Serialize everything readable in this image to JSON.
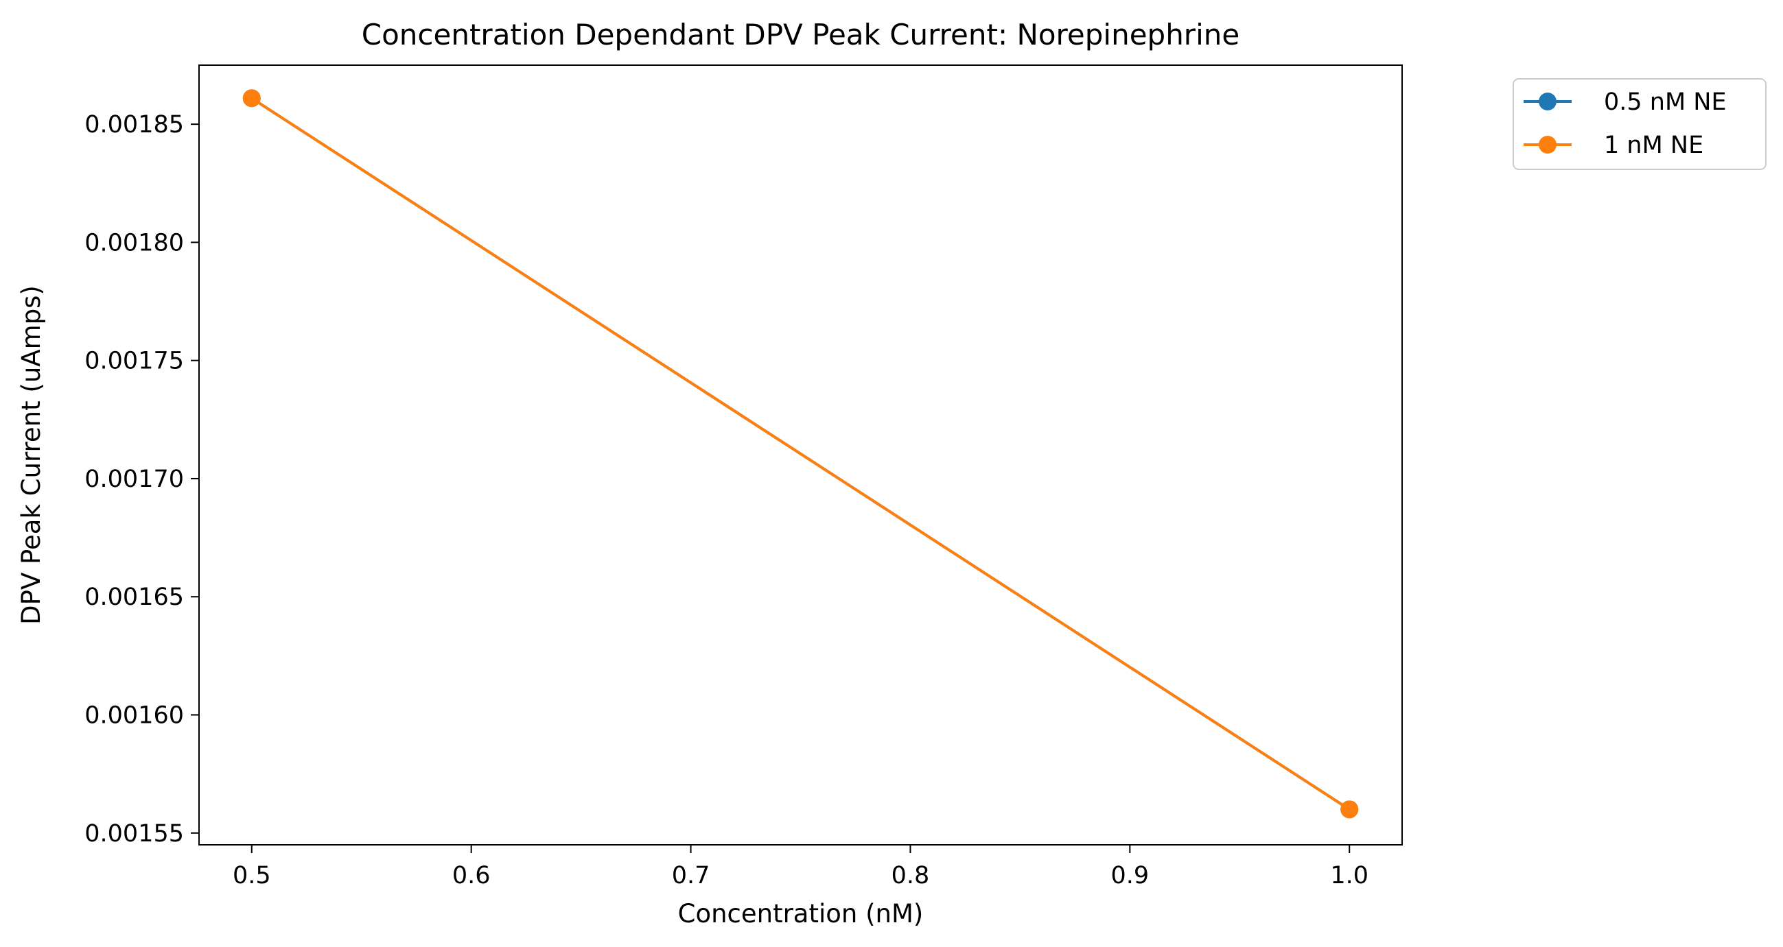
{
  "chart_data": {
    "type": "line",
    "title": "Concentration Dependant DPV Peak Current: Norepinephrine",
    "xlabel": "Concentration (nM)",
    "ylabel": "DPV Peak Current (uAmps)",
    "xlim": [
      0.476,
      1.024
    ],
    "ylim": [
      0.001545,
      0.001875
    ],
    "xticks": [
      0.5,
      0.6,
      0.7,
      0.8,
      0.9,
      1.0
    ],
    "xtick_labels": [
      "0.5",
      "0.6",
      "0.7",
      "0.8",
      "0.9",
      "1.0"
    ],
    "yticks": [
      0.00155,
      0.0016,
      0.00165,
      0.0017,
      0.00175,
      0.0018,
      0.00185
    ],
    "ytick_labels": [
      "0.00155",
      "0.00160",
      "0.00165",
      "0.00170",
      "0.00175",
      "0.00180",
      "0.00185"
    ],
    "grid": false,
    "legend_position": "outside-top-right",
    "series": [
      {
        "name": "0.5 nM NE",
        "color": "#1f77b4",
        "marker": "circle",
        "x": [
          0.5,
          1.0
        ],
        "y": [
          0.001861,
          0.00156
        ]
      },
      {
        "name": "1 nM NE",
        "color": "#ff7f0e",
        "marker": "circle",
        "x": [
          0.5,
          1.0
        ],
        "y": [
          0.001861,
          0.00156
        ]
      }
    ]
  }
}
